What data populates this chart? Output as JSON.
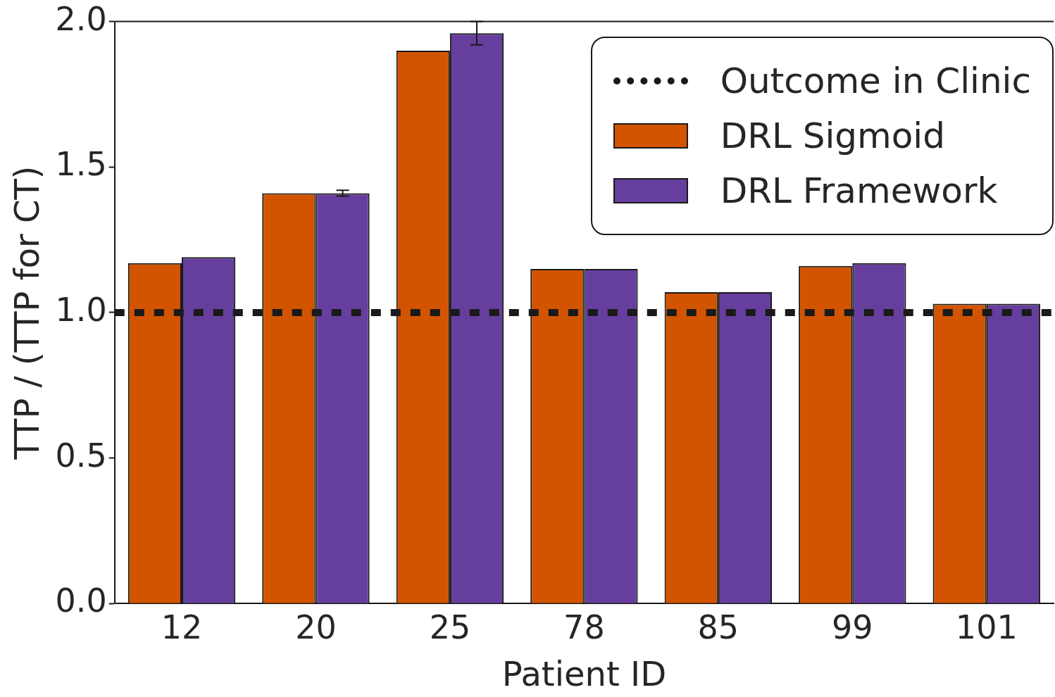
{
  "chart_data": {
    "type": "bar",
    "xlabel": "Patient ID",
    "ylabel": "TTP / (TTP for CT)",
    "categories": [
      "12",
      "20",
      "25",
      "78",
      "85",
      "99",
      "101"
    ],
    "series": [
      {
        "name": "DRL Sigmoid",
        "color": "#d35400",
        "values": [
          1.17,
          1.41,
          1.9,
          1.15,
          1.07,
          1.16,
          1.03
        ]
      },
      {
        "name": "DRL Framework",
        "color": "#663f9e",
        "values": [
          1.19,
          1.41,
          1.96,
          1.15,
          1.07,
          1.17,
          1.03
        ],
        "errors": [
          null,
          0.01,
          0.04,
          null,
          null,
          null,
          null
        ]
      }
    ],
    "ylim": [
      0,
      2
    ],
    "yticks": [
      {
        "value": 0,
        "label": "0.0"
      },
      {
        "value": 0.5,
        "label": "0.5"
      },
      {
        "value": 1,
        "label": "1.0"
      },
      {
        "value": 1.5,
        "label": "1.5"
      },
      {
        "value": 2,
        "label": "2.0"
      }
    ],
    "ref_lines": [
      {
        "axis": "y",
        "value": 1,
        "label": "Outcome in Clinic",
        "color": "#1a1a1a",
        "line_style": "dotted"
      }
    ],
    "grid": false,
    "legend": "top right"
  }
}
